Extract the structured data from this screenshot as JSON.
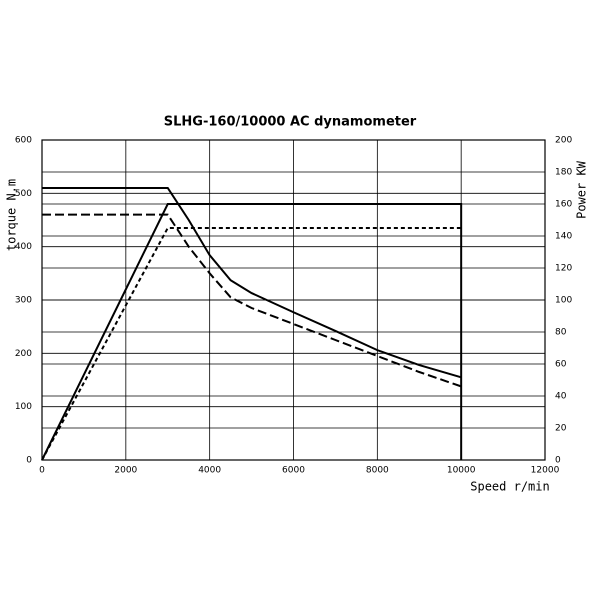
{
  "chart_data": {
    "type": "line",
    "title": "SLHG-160/10000 AC dynamometer",
    "x_label": "Speed r/min",
    "y_label": "torque N.m",
    "y2_label": "Power KW",
    "xlim": [
      0,
      12000
    ],
    "xticks": [
      0,
      2000,
      4000,
      6000,
      8000,
      10000,
      12000
    ],
    "ylim": [
      0,
      600
    ],
    "yticks": [
      0,
      100,
      200,
      300,
      400,
      500,
      600
    ],
    "y2lim": [
      0,
      200
    ],
    "y2ticks": [
      0,
      20,
      40,
      60,
      80,
      100,
      120,
      140,
      160,
      180,
      200
    ],
    "grid": true,
    "series": [
      {
        "color": "#000000",
        "linestyle": "solid",
        "x": [
          0,
          3000,
          3500,
          4000,
          4500,
          5000,
          6000,
          7000,
          8000,
          9000,
          10000
        ],
        "values": [
          510,
          510,
          450,
          384,
          337,
          313,
          277,
          242,
          206,
          178,
          155
        ]
      },
      {
        "color": "#000000",
        "linestyle": "dashed",
        "x": [
          0,
          3000,
          3500,
          4000,
          4500,
          5000,
          6000,
          7000,
          8000,
          9000,
          10000
        ],
        "values": [
          460,
          460,
          400,
          350,
          305,
          285,
          255,
          225,
          195,
          165,
          138
        ]
      },
      {
        "color": "#000000",
        "linestyle": "solid",
        "axis": "y2",
        "x": [
          0,
          3000,
          10000,
          10000
        ],
        "values": [
          0,
          160,
          160,
          0
        ]
      },
      {
        "color": "#000000",
        "linestyle": "dotted",
        "axis": "y2",
        "x": [
          0,
          3000,
          10000
        ],
        "values": [
          0,
          145,
          145
        ]
      }
    ]
  }
}
